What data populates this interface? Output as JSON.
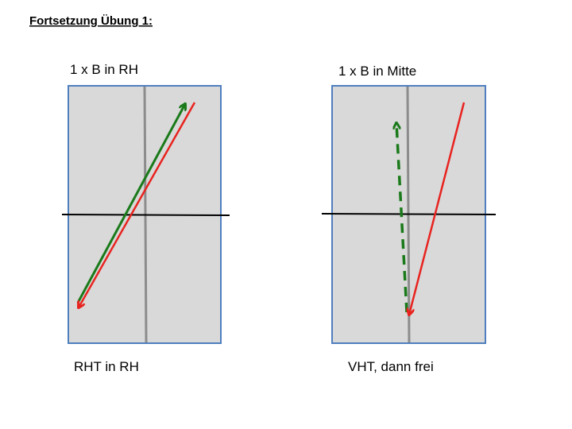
{
  "header": {
    "title": "Fortsetzung Übung 1:"
  },
  "panels": [
    {
      "caption": "1 x B in RH",
      "label": "RHT in RH"
    },
    {
      "caption": "1 x B in Mitte",
      "label": "VHT, dann frei"
    }
  ]
}
